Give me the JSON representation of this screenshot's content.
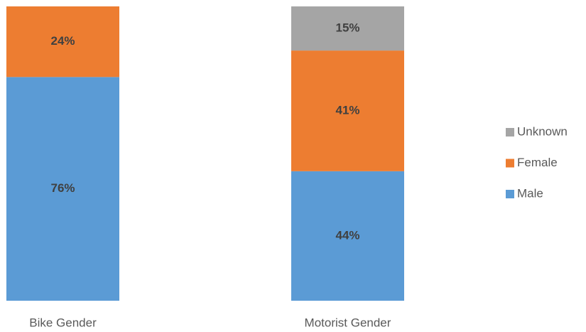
{
  "chart_data": {
    "type": "stacked-bar",
    "categories": [
      "Bike Gender",
      "Motorist Gender"
    ],
    "series": [
      {
        "name": "Male",
        "color": "#5b9bd5",
        "values": [
          76,
          44
        ],
        "value_labels": [
          "76%",
          "44%"
        ]
      },
      {
        "name": "Female",
        "color": "#ed7d31",
        "values": [
          24,
          41
        ],
        "value_labels": [
          "24%",
          "41%"
        ]
      },
      {
        "name": "Unknown",
        "color": "#a5a5a5",
        "values": [
          null,
          15
        ],
        "value_labels": [
          null,
          "15%"
        ]
      }
    ],
    "legend": "right"
  }
}
